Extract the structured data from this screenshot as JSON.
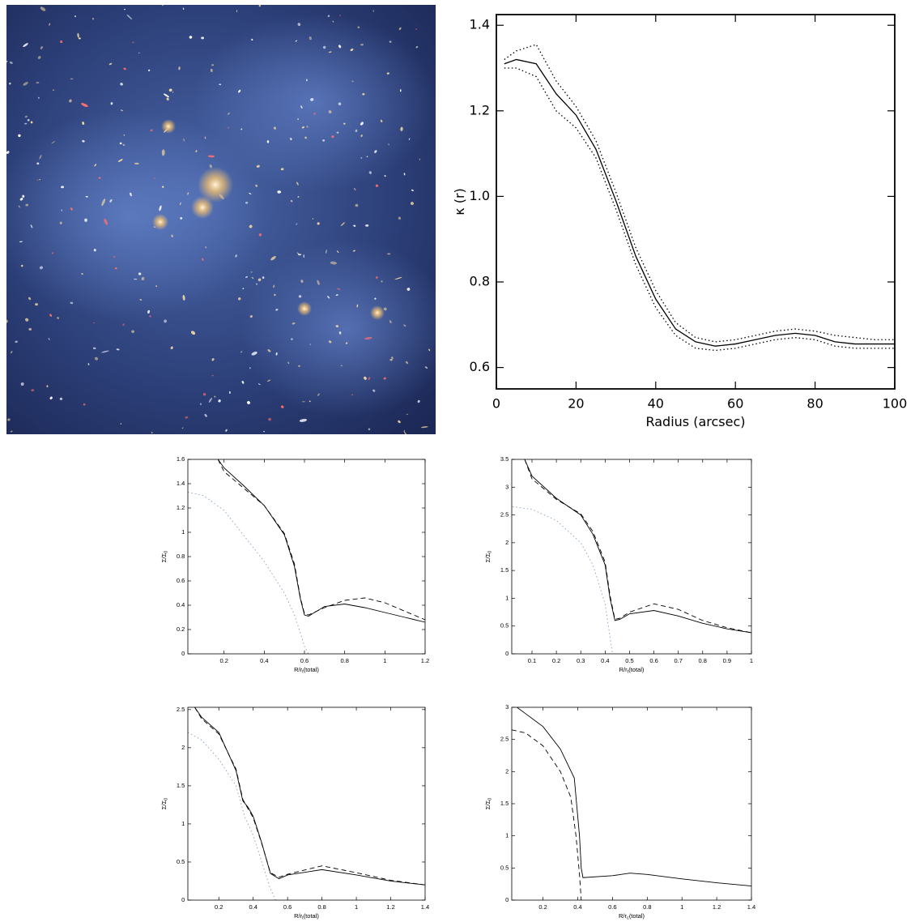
{
  "chart_data": [
    {
      "type": "line",
      "xlabel": "Radius (arcsec)",
      "ylabel": "κ (r)",
      "xlim": [
        0,
        100
      ],
      "ylim": [
        0.55,
        1.425
      ],
      "xticks": [
        0,
        20,
        40,
        60,
        80,
        100
      ],
      "yticks": [
        0.6,
        0.8,
        {
          "value": 1,
          "label": "1.0"
        },
        1.2,
        1.4
      ],
      "series": [
        {
          "color": "#000000",
          "style": "solid",
          "x": [
            2,
            5,
            10,
            15,
            20,
            25,
            30,
            35,
            40,
            45,
            50,
            55,
            60,
            65,
            70,
            75,
            80,
            85,
            90,
            95,
            100
          ],
          "values": [
            1.31,
            1.32,
            1.31,
            1.24,
            1.19,
            1.11,
            0.99,
            0.86,
            0.76,
            0.69,
            0.66,
            0.65,
            0.655,
            0.665,
            0.675,
            0.68,
            0.675,
            0.66,
            0.655,
            0.655,
            0.655
          ]
        },
        {
          "color": "#000000",
          "style": "dotted",
          "x": [
            2,
            5,
            10,
            15,
            20,
            25,
            30,
            35,
            40,
            45,
            50,
            55,
            60,
            65,
            70,
            75,
            80,
            85,
            90,
            95,
            100
          ],
          "values": [
            1.32,
            1.34,
            1.355,
            1.27,
            1.21,
            1.13,
            1.01,
            0.88,
            0.78,
            0.705,
            0.67,
            0.66,
            0.665,
            0.675,
            0.685,
            0.69,
            0.685,
            0.675,
            0.67,
            0.665,
            0.665
          ]
        },
        {
          "color": "#000000",
          "style": "dotted",
          "x": [
            2,
            5,
            10,
            15,
            20,
            25,
            30,
            35,
            40,
            45,
            50,
            55,
            60,
            65,
            70,
            75,
            80,
            85,
            90,
            95,
            100
          ],
          "values": [
            1.3,
            1.3,
            1.28,
            1.2,
            1.16,
            1.09,
            0.97,
            0.84,
            0.74,
            0.675,
            0.645,
            0.64,
            0.645,
            0.655,
            0.665,
            0.67,
            0.665,
            0.65,
            0.645,
            0.645,
            0.645
          ]
        }
      ]
    },
    {
      "type": "line",
      "xlabel": "R/r",
      "xlabel_sub": "t",
      "xlabel_end": "(total)",
      "ylabel": "Σ/Σ",
      "ylabel_sub": "0",
      "xlim": [
        0.02,
        1.2
      ],
      "ylim": [
        0,
        1.6
      ],
      "xticks": [
        0.2,
        0.4,
        0.6,
        0.8,
        1,
        1.2
      ],
      "yticks": [
        0,
        0.2,
        0.4,
        0.6,
        0.8,
        1,
        1.2,
        1.4,
        1.6
      ],
      "series": [
        {
          "color": "#000000",
          "style": "solid",
          "x": [
            0.17,
            0.2,
            0.3,
            0.4,
            0.5,
            0.55,
            0.58,
            0.6,
            0.62,
            0.7,
            0.8,
            0.9,
            1.0,
            1.1,
            1.2
          ],
          "values": [
            1.6,
            1.53,
            1.38,
            1.22,
            0.98,
            0.72,
            0.45,
            0.32,
            0.31,
            0.39,
            0.41,
            0.38,
            0.34,
            0.3,
            0.26
          ]
        },
        {
          "color": "#000000",
          "style": "dashed",
          "x": [
            0.17,
            0.2,
            0.3,
            0.4,
            0.5,
            0.55,
            0.58,
            0.6,
            0.62,
            0.7,
            0.8,
            0.9,
            1.0,
            1.1,
            1.2
          ],
          "values": [
            1.6,
            1.5,
            1.36,
            1.22,
            0.99,
            0.74,
            0.46,
            0.33,
            0.32,
            0.38,
            0.44,
            0.46,
            0.42,
            0.35,
            0.28
          ]
        },
        {
          "color": "#7f9fc0",
          "style": "dotted",
          "x": [
            0.02,
            0.1,
            0.2,
            0.3,
            0.4,
            0.5,
            0.55,
            0.58,
            0.6,
            0.62
          ],
          "values": [
            1.33,
            1.3,
            1.18,
            0.97,
            0.76,
            0.5,
            0.32,
            0.17,
            0.06,
            0
          ]
        }
      ]
    },
    {
      "type": "line",
      "xlabel": "R/r",
      "xlabel_sub": "t",
      "xlabel_end": "(total)",
      "ylabel": "Σ/Σ",
      "ylabel_sub": "0",
      "xlim": [
        0.017,
        1
      ],
      "ylim": [
        0,
        3.5
      ],
      "xticks": [
        0.1,
        0.2,
        0.3,
        0.4,
        0.5,
        0.6,
        0.7,
        0.8,
        0.9,
        1
      ],
      "yticks": [
        0,
        0.5,
        1,
        1.5,
        2,
        2.5,
        3,
        3.5
      ],
      "series": [
        {
          "color": "#000000",
          "style": "solid",
          "x": [
            0.07,
            0.1,
            0.2,
            0.3,
            0.35,
            0.4,
            0.42,
            0.44,
            0.46,
            0.5,
            0.6,
            0.7,
            0.8,
            0.9,
            1.0
          ],
          "values": [
            3.5,
            3.2,
            2.8,
            2.5,
            2.15,
            1.6,
            1.0,
            0.6,
            0.62,
            0.72,
            0.78,
            0.68,
            0.55,
            0.45,
            0.38
          ]
        },
        {
          "color": "#000000",
          "style": "dashed",
          "x": [
            0.07,
            0.1,
            0.2,
            0.3,
            0.35,
            0.4,
            0.42,
            0.44,
            0.46,
            0.5,
            0.6,
            0.7,
            0.8,
            0.9,
            1.0
          ],
          "values": [
            3.5,
            3.15,
            2.78,
            2.52,
            2.2,
            1.65,
            1.05,
            0.62,
            0.64,
            0.75,
            0.9,
            0.8,
            0.6,
            0.47,
            0.38
          ]
        },
        {
          "color": "#7f9fc0",
          "style": "dotted",
          "x": [
            0.02,
            0.1,
            0.2,
            0.3,
            0.35,
            0.4,
            0.42,
            0.43
          ],
          "values": [
            2.65,
            2.6,
            2.4,
            2.0,
            1.6,
            0.9,
            0.3,
            0
          ]
        }
      ]
    },
    {
      "type": "line",
      "xlabel": "R/r",
      "xlabel_sub": "t",
      "xlabel_end": "(total)",
      "ylabel": "Σ/Σ",
      "ylabel_sub": "0",
      "xlim": [
        0.02,
        1.4
      ],
      "ylim": [
        0,
        2.53
      ],
      "xticks": [
        0.2,
        0.4,
        0.6,
        0.8,
        1,
        1.2,
        1.4
      ],
      "yticks": [
        0,
        0.5,
        1,
        1.5,
        2,
        2.5
      ],
      "series": [
        {
          "color": "#000000",
          "style": "solid",
          "x": [
            0.06,
            0.1,
            0.2,
            0.3,
            0.34,
            0.37,
            0.4,
            0.45,
            0.5,
            0.55,
            0.6,
            0.8,
            1.0,
            1.2,
            1.4
          ],
          "values": [
            2.53,
            2.4,
            2.2,
            1.7,
            1.3,
            1.22,
            1.1,
            0.75,
            0.35,
            0.28,
            0.33,
            0.4,
            0.33,
            0.25,
            0.2
          ]
        },
        {
          "color": "#000000",
          "style": "dashed",
          "x": [
            0.06,
            0.1,
            0.2,
            0.3,
            0.34,
            0.37,
            0.4,
            0.45,
            0.5,
            0.55,
            0.6,
            0.8,
            1.0,
            1.2,
            1.4
          ],
          "values": [
            2.53,
            2.38,
            2.18,
            1.72,
            1.32,
            1.2,
            1.08,
            0.74,
            0.36,
            0.3,
            0.34,
            0.45,
            0.36,
            0.26,
            0.2
          ]
        },
        {
          "color": "#7f9fc0",
          "style": "dotted",
          "x": [
            0.02,
            0.1,
            0.2,
            0.3,
            0.35,
            0.4,
            0.45,
            0.5,
            0.53
          ],
          "values": [
            2.2,
            2.1,
            1.85,
            1.5,
            1.1,
            0.85,
            0.5,
            0.15,
            0
          ]
        }
      ]
    },
    {
      "type": "line",
      "xlabel": "R/r",
      "xlabel_sub": "c",
      "xlabel_end": "(total)",
      "ylabel": "Σ/Σ",
      "ylabel_sub": "0",
      "xlim": [
        0.02,
        1.4
      ],
      "ylim": [
        0,
        3
      ],
      "xticks": [
        0.2,
        0.4,
        0.6,
        0.8,
        1,
        1.2,
        1.4
      ],
      "yticks": [
        0,
        0.5,
        1,
        1.5,
        2,
        2.5,
        3
      ],
      "series": [
        {
          "color": "#000000",
          "style": "solid",
          "x": [
            0.05,
            0.1,
            0.2,
            0.3,
            0.38,
            0.41,
            0.42,
            0.43,
            0.6,
            0.7,
            0.8,
            1.0,
            1.2,
            1.4
          ],
          "values": [
            3.0,
            2.9,
            2.7,
            2.35,
            1.9,
            1.0,
            0.5,
            0.35,
            0.38,
            0.42,
            0.4,
            0.33,
            0.27,
            0.22
          ]
        },
        {
          "color": "#000000",
          "style": "dashed",
          "x": [
            0.02,
            0.1,
            0.2,
            0.3,
            0.36,
            0.39,
            0.41,
            0.42
          ],
          "values": [
            2.65,
            2.6,
            2.4,
            2.0,
            1.6,
            1.0,
            0.4,
            0
          ]
        }
      ]
    }
  ]
}
